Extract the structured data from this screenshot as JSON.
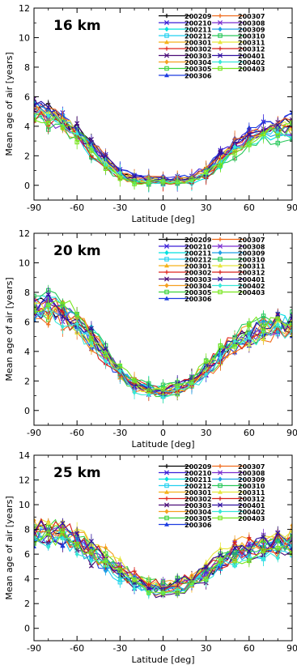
{
  "figure": {
    "ylabel": "Mean age of air [years]",
    "xlabel": "Latitude [deg]"
  },
  "colors": {
    "200209": "#000000",
    "200210": "#3a1fd8",
    "200211": "#00e0e0",
    "200212": "#22d0f0",
    "200301": "#f5b21c",
    "200302": "#e0241c",
    "200303": "#4b0c78",
    "200304": "#f5a020",
    "200305": "#3cd23c",
    "200306": "#1c3ce0",
    "200307": "#f06a1a",
    "200308": "#7a2ed0",
    "200309": "#1ea0e6",
    "200310": "#28c85a",
    "200311": "#e6e63c",
    "200312": "#d8201a",
    "200401": "#3010a0",
    "200402": "#38e8d8",
    "200403": "#78e61e"
  },
  "legend_col1": [
    "200209",
    "200210",
    "200211",
    "200212",
    "200301",
    "200302",
    "200303",
    "200304",
    "200305",
    "200306"
  ],
  "legend_col2": [
    "200307",
    "200308",
    "200309",
    "200310",
    "200311",
    "200312",
    "200401",
    "200402",
    "200403"
  ],
  "chart_data": [
    {
      "type": "line",
      "title": "16 km",
      "xlabel": "Latitude [deg]",
      "ylabel": "Mean age of air [years]",
      "xlim": [
        -90,
        90
      ],
      "ylim": [
        -1,
        12
      ],
      "xticks": [
        -90,
        -60,
        -30,
        0,
        30,
        60,
        90
      ],
      "yticks": [
        0,
        2,
        4,
        6,
        8,
        10,
        12
      ],
      "x": [
        -90,
        -80,
        -70,
        -60,
        -50,
        -40,
        -30,
        -20,
        -10,
        0,
        10,
        20,
        30,
        40,
        50,
        60,
        70,
        80,
        90
      ],
      "mean": [
        5.2,
        4.8,
        4.3,
        3.6,
        2.6,
        1.6,
        0.8,
        0.4,
        0.3,
        0.3,
        0.3,
        0.4,
        0.9,
        1.8,
        2.6,
        3.2,
        3.6,
        3.8,
        4.0
      ]
    },
    {
      "type": "line",
      "title": "20 km",
      "xlabel": "Latitude [deg]",
      "ylabel": "Mean age of air [years]",
      "xlim": [
        -90,
        90
      ],
      "ylim": [
        -1,
        12
      ],
      "xticks": [
        -90,
        -60,
        -30,
        0,
        30,
        60,
        90
      ],
      "yticks": [
        0,
        2,
        4,
        6,
        8,
        10,
        12
      ],
      "x": [
        -90,
        -80,
        -70,
        -60,
        -50,
        -40,
        -30,
        -20,
        -10,
        0,
        10,
        20,
        30,
        40,
        50,
        60,
        70,
        80,
        90
      ],
      "mean": [
        7.0,
        7.2,
        6.8,
        6.0,
        5.0,
        3.8,
        2.6,
        1.8,
        1.4,
        1.3,
        1.5,
        2.0,
        2.8,
        3.8,
        4.6,
        5.2,
        5.6,
        5.8,
        5.8
      ]
    },
    {
      "type": "line",
      "title": "25 km",
      "xlabel": "Latitude [deg]",
      "ylabel": "Mean age of air [years]",
      "xlim": [
        -90,
        90
      ],
      "ylim": [
        -1,
        14
      ],
      "xticks": [
        -90,
        -60,
        -30,
        0,
        30,
        60,
        90
      ],
      "yticks": [
        0,
        2,
        4,
        6,
        8,
        10,
        12,
        14
      ],
      "x": [
        -90,
        -80,
        -70,
        -60,
        -50,
        -40,
        -30,
        -20,
        -10,
        0,
        10,
        20,
        30,
        40,
        50,
        60,
        70,
        80,
        90
      ],
      "mean": [
        7.5,
        7.8,
        7.6,
        7.0,
        6.2,
        5.4,
        4.6,
        3.9,
        3.4,
        3.2,
        3.4,
        3.9,
        4.6,
        5.4,
        6.0,
        6.4,
        6.6,
        6.8,
        7.0
      ]
    }
  ]
}
